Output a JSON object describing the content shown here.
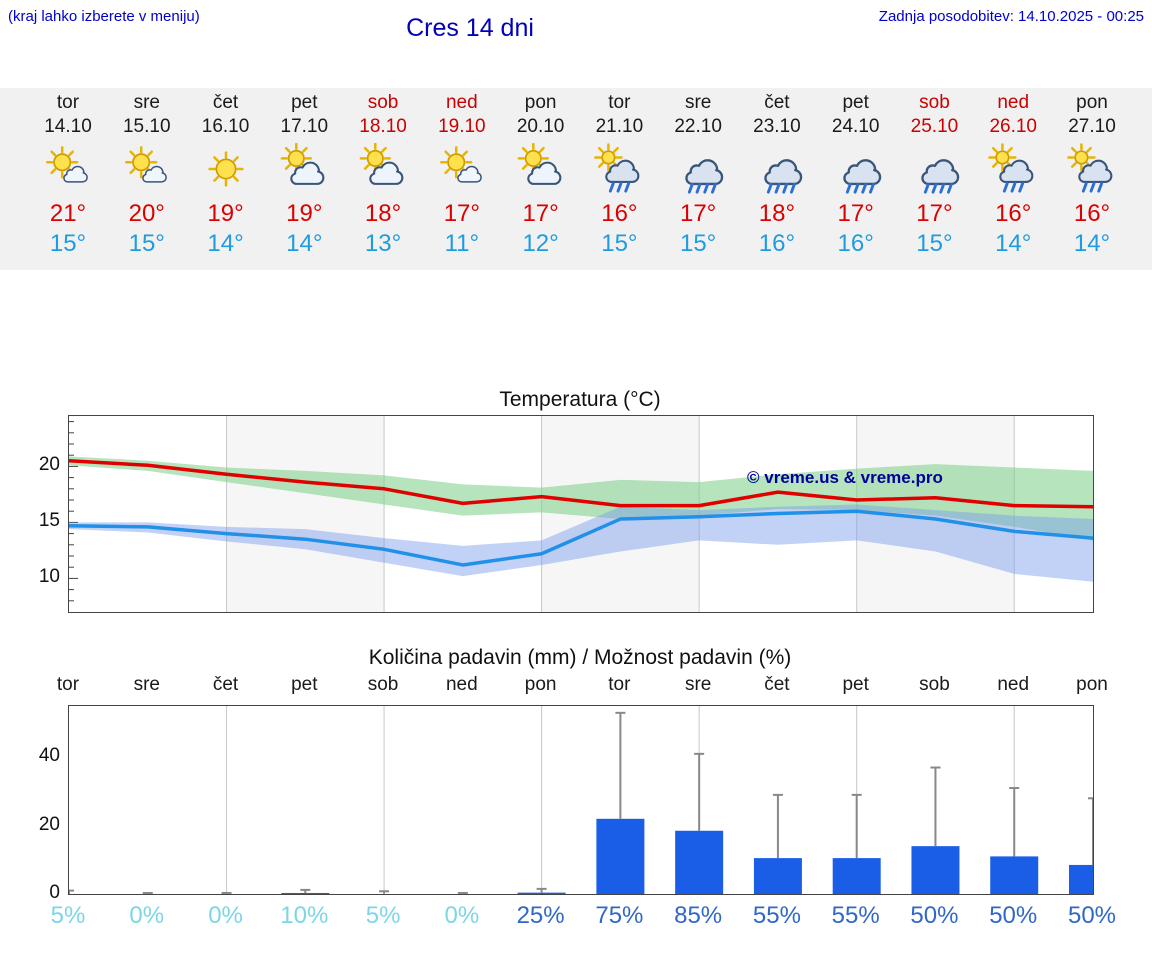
{
  "header": {
    "hint": "(kraj lahko izberete v meniju)",
    "title": "Cres 14 dni",
    "updated": "Zadnja posodobitev: 14.10.2025 - 00:25"
  },
  "colors": {
    "header_blue": "#0000cc",
    "weekend_red": "#cc0000",
    "tmax_red": "#dd0000",
    "tmin_blue": "#1e9ce0",
    "strip_background": "#f1f1f1",
    "prob_low": "#7cd6e6",
    "prob_high": "#3068c8"
  },
  "forecast": {
    "days": [
      {
        "name": "tor",
        "date": "14.10",
        "weekend": false,
        "icon": "mostly-sunny",
        "tmax": "21°",
        "tmin": "15°"
      },
      {
        "name": "sre",
        "date": "15.10",
        "weekend": false,
        "icon": "mostly-sunny",
        "tmax": "20°",
        "tmin": "15°"
      },
      {
        "name": "čet",
        "date": "16.10",
        "weekend": false,
        "icon": "sunny",
        "tmax": "19°",
        "tmin": "14°"
      },
      {
        "name": "pet",
        "date": "17.10",
        "weekend": false,
        "icon": "partly-cloudy",
        "tmax": "19°",
        "tmin": "14°"
      },
      {
        "name": "sob",
        "date": "18.10",
        "weekend": true,
        "icon": "partly-cloudy",
        "tmax": "18°",
        "tmin": "13°"
      },
      {
        "name": "ned",
        "date": "19.10",
        "weekend": true,
        "icon": "mostly-sunny",
        "tmax": "17°",
        "tmin": "11°"
      },
      {
        "name": "pon",
        "date": "20.10",
        "weekend": false,
        "icon": "partly-cloudy",
        "tmax": "17°",
        "tmin": "12°"
      },
      {
        "name": "tor",
        "date": "21.10",
        "weekend": false,
        "icon": "sun-rain",
        "tmax": "16°",
        "tmin": "15°"
      },
      {
        "name": "sre",
        "date": "22.10",
        "weekend": false,
        "icon": "rain",
        "tmax": "17°",
        "tmin": "15°"
      },
      {
        "name": "čet",
        "date": "23.10",
        "weekend": false,
        "icon": "rain",
        "tmax": "18°",
        "tmin": "16°"
      },
      {
        "name": "pet",
        "date": "24.10",
        "weekend": false,
        "icon": "rain",
        "tmax": "17°",
        "tmin": "16°"
      },
      {
        "name": "sob",
        "date": "25.10",
        "weekend": true,
        "icon": "rain",
        "tmax": "17°",
        "tmin": "15°"
      },
      {
        "name": "ned",
        "date": "26.10",
        "weekend": true,
        "icon": "sun-rain",
        "tmax": "16°",
        "tmin": "14°"
      },
      {
        "name": "pon",
        "date": "27.10",
        "weekend": false,
        "icon": "sun-rain",
        "tmax": "16°",
        "tmin": "14°"
      }
    ]
  },
  "chart_data": [
    {
      "type": "line",
      "title": "Temperatura (°C)",
      "watermark": "© vreme.us & vreme.pro",
      "x_dates": [
        "14.10",
        "15.10",
        "16.10",
        "17.10",
        "18.10",
        "19.10",
        "20.10",
        "21.10",
        "22.10",
        "23.10",
        "24.10",
        "25.10",
        "26.10",
        "27.10"
      ],
      "yticks": [
        10,
        15,
        20
      ],
      "ylim": [
        7,
        24.5
      ],
      "series": [
        {
          "name": "tmax",
          "color": "#e00000",
          "values": [
            20.5,
            20.1,
            19.3,
            18.6,
            18.0,
            16.7,
            17.3,
            16.5,
            16.5,
            17.7,
            17.0,
            17.2,
            16.5,
            16.4
          ]
        },
        {
          "name": "tmin",
          "color": "#2090e8",
          "values": [
            14.7,
            14.6,
            14.0,
            13.5,
            12.6,
            11.2,
            12.2,
            15.3,
            15.5,
            15.8,
            16.0,
            15.3,
            14.2,
            13.6
          ]
        }
      ],
      "bands": [
        {
          "name": "tmax-range",
          "color": "rgba(120,205,135,0.55)",
          "upper": [
            20.9,
            20.5,
            19.9,
            19.6,
            19.2,
            18.4,
            18.1,
            18.8,
            18.6,
            19.3,
            19.8,
            20.2,
            19.9,
            19.6
          ],
          "lower": [
            20.1,
            19.6,
            18.6,
            17.6,
            16.6,
            15.6,
            15.9,
            15.3,
            15.6,
            16.2,
            16.1,
            15.6,
            14.6,
            13.4
          ]
        },
        {
          "name": "tmin-range",
          "color": "rgba(120,155,235,0.45)",
          "upper": [
            15.0,
            15.0,
            14.6,
            14.4,
            13.6,
            12.9,
            13.4,
            16.4,
            16.1,
            16.4,
            16.6,
            16.1,
            15.6,
            15.3
          ],
          "lower": [
            14.4,
            14.1,
            13.3,
            12.6,
            11.4,
            10.2,
            11.2,
            12.4,
            13.4,
            13.0,
            13.4,
            12.4,
            10.4,
            9.7
          ]
        }
      ]
    },
    {
      "type": "bar",
      "title": "Količina padavin (mm) / Možnost padavin (%)",
      "categories": [
        "tor",
        "sre",
        "čet",
        "pet",
        "sob",
        "ned",
        "pon",
        "tor",
        "sre",
        "čet",
        "pet",
        "sob",
        "ned",
        "pon"
      ],
      "values_mm": [
        0,
        0,
        0,
        0.3,
        0.1,
        0,
        0.4,
        22,
        18.5,
        10.5,
        10.5,
        14,
        11,
        8.5
      ],
      "whisker_max_mm": [
        1,
        0.3,
        0.3,
        1.2,
        0.8,
        0.3,
        1.5,
        53,
        41,
        29,
        29,
        37,
        31,
        28
      ],
      "probability_pct": [
        5,
        0,
        0,
        10,
        5,
        0,
        25,
        75,
        85,
        55,
        55,
        50,
        50,
        50
      ],
      "yticks": [
        0,
        20,
        40
      ],
      "ylim": [
        0,
        55
      ],
      "bar_color": "#1a5ee8",
      "whisker_color": "#888888"
    }
  ]
}
